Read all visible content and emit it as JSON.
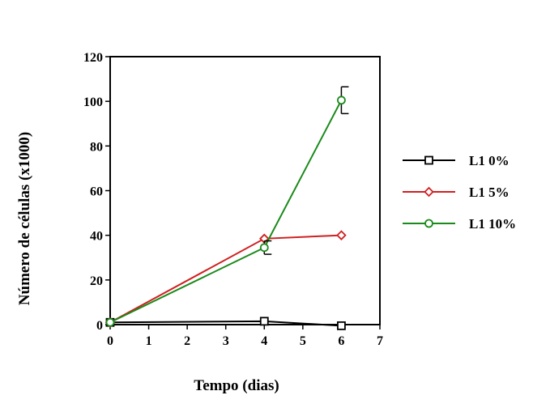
{
  "chart_data": {
    "type": "line",
    "xlabel": "Tempo (dias)",
    "ylabel": "Número de células (x1000)",
    "xlim": [
      0,
      7
    ],
    "ylim": [
      0,
      120
    ],
    "xticks": [
      0,
      1,
      2,
      3,
      4,
      5,
      6,
      7
    ],
    "yticks": [
      0,
      20,
      40,
      60,
      80,
      100,
      120
    ],
    "grid": false,
    "legend_position": "right",
    "series": [
      {
        "name": "L1 0%",
        "color": "#000000",
        "marker": "square",
        "x": [
          0,
          4,
          6
        ],
        "y": [
          1,
          1.5,
          -0.5
        ],
        "error": [
          0,
          0,
          0
        ]
      },
      {
        "name": "L1 5%",
        "color": "#d02020",
        "marker": "diamond",
        "x": [
          0,
          4,
          6
        ],
        "y": [
          1,
          38.5,
          40
        ],
        "error": [
          0,
          0,
          0
        ]
      },
      {
        "name": "L1 10%",
        "color": "#1a8a1a",
        "marker": "circle",
        "x": [
          0,
          4,
          6
        ],
        "y": [
          1,
          34.5,
          100.5
        ],
        "error": [
          0,
          3,
          6
        ]
      }
    ]
  }
}
